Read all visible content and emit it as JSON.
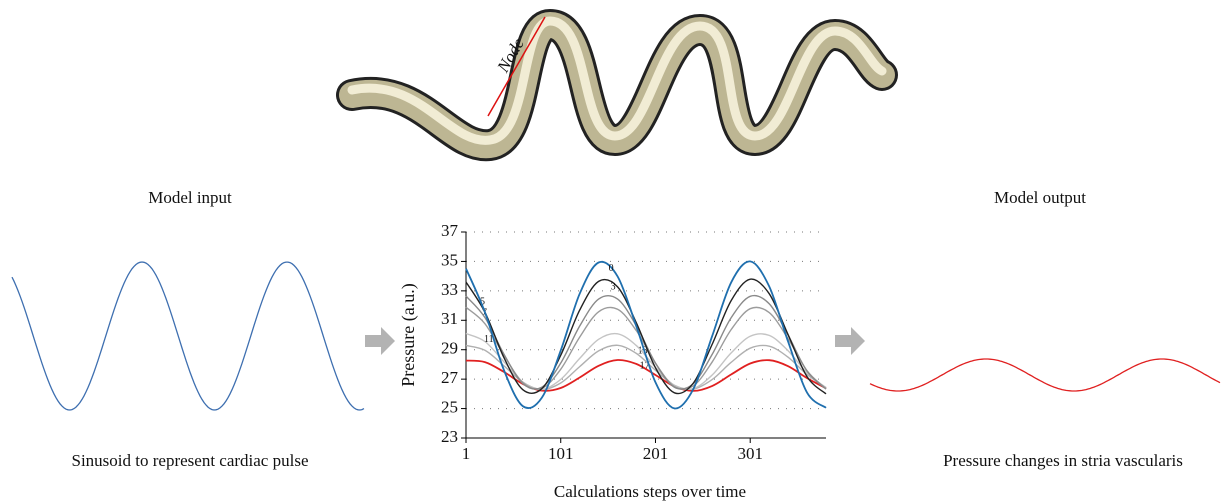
{
  "figure": {
    "node_label": "Node",
    "input_title": "Model input",
    "input_caption": "Sinusoid to represent cardiac pulse",
    "output_title": "Model output",
    "output_caption": "Pressure changes in stria vascularis"
  },
  "chart_data": {
    "type": "line",
    "x_label": "Calculations steps over time",
    "y_label": "Pressure (a.u.)",
    "x": [
      1,
      21,
      41,
      61,
      81,
      101,
      121,
      141,
      161,
      181,
      201,
      221,
      241,
      261,
      281,
      301,
      321,
      341,
      361,
      381
    ],
    "xlim": [
      1,
      381
    ],
    "xticks": [
      1,
      101,
      201,
      301
    ],
    "ylim": [
      23,
      37
    ],
    "yticks": [
      23,
      25,
      27,
      29,
      31,
      33,
      35,
      37
    ],
    "grid": true,
    "series": [
      {
        "name": "0",
        "color": "#1f6fae",
        "values": [
          34.51,
          31.55,
          27.62,
          25.17,
          25.73,
          28.94,
          32.81,
          34.93,
          33.98,
          30.56,
          26.78,
          25.01,
          26.34,
          29.95,
          33.59,
          35.0,
          33.3,
          29.55,
          26.08,
          25.05
        ]
      },
      {
        "name": "3",
        "color": "#222222",
        "values": [
          33.6,
          31.55,
          28.47,
          26.28,
          26.35,
          28.62,
          31.69,
          33.64,
          33.27,
          30.8,
          27.77,
          26.07,
          26.74,
          29.39,
          32.35,
          33.79,
          32.81,
          30.02,
          27.16,
          26.0
        ]
      },
      {
        "name": "5",
        "color": "#8a8a8a",
        "values": [
          32.64,
          31.19,
          28.7,
          26.7,
          26.45,
          28.09,
          30.61,
          32.44,
          32.44,
          30.61,
          28.09,
          26.45,
          26.7,
          28.7,
          31.19,
          32.63,
          32.13,
          29.99,
          27.54,
          26.32
        ]
      },
      {
        "name": "7",
        "color": "#9c9c9c",
        "values": [
          31.88,
          30.77,
          28.62,
          26.77,
          26.37,
          27.67,
          29.86,
          31.58,
          31.75,
          30.28,
          28.08,
          26.5,
          26.55,
          28.18,
          30.38,
          31.79,
          31.52,
          29.75,
          27.57,
          26.35
        ]
      },
      {
        "name": "11",
        "color": "#c4c4c4",
        "values": [
          30.1,
          29.56,
          28.18,
          26.81,
          26.3,
          26.98,
          28.41,
          29.71,
          30.08,
          29.27,
          27.8,
          26.58,
          26.36,
          27.29,
          28.79,
          29.91,
          29.97,
          28.93,
          27.43,
          26.41
        ]
      },
      {
        "name": "13",
        "color": "#b0b0b0",
        "values": [
          29.29,
          28.96,
          27.91,
          26.79,
          26.3,
          26.74,
          27.85,
          28.92,
          29.3,
          28.74,
          27.6,
          26.59,
          26.33,
          26.98,
          28.15,
          29.1,
          29.24,
          28.49,
          27.31,
          26.43
        ]
      },
      {
        "name": "17",
        "color": "#e02020",
        "values": [
          28.26,
          28.16,
          27.49,
          26.68,
          26.22,
          26.4,
          27.11,
          27.91,
          28.3,
          28.03,
          27.28,
          26.51,
          26.2,
          26.54,
          27.32,
          28.06,
          28.29,
          27.88,
          27.07,
          26.38
        ]
      }
    ]
  }
}
